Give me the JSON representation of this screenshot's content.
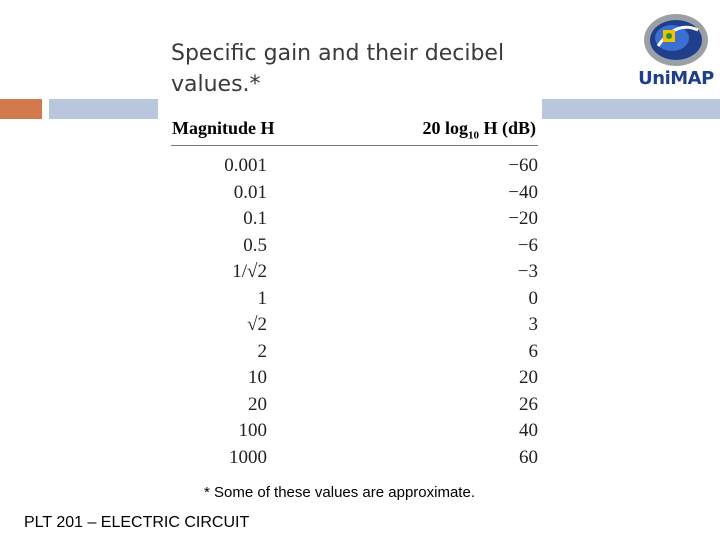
{
  "slide": {
    "title": "Specific gain and their decibel\nvalues.*",
    "note": "* Some of these values are approximate.",
    "footer": "PLT 201 – ELECTRIC CIRCUIT"
  },
  "logo": {
    "text": "UniMAP"
  },
  "table": {
    "header_magnitude": "Magnitude H",
    "header_db_prefix": "20 log",
    "header_db_sub": "10",
    "header_db_suffix": " H (dB)",
    "rows": [
      {
        "magnitude": "0.001",
        "db": "−60"
      },
      {
        "magnitude": "0.01",
        "db": "−40"
      },
      {
        "magnitude": "0.1",
        "db": "−20"
      },
      {
        "magnitude": "0.5",
        "db": "−6"
      },
      {
        "magnitude": "1/√2",
        "db": "−3"
      },
      {
        "magnitude": "1",
        "db": "0"
      },
      {
        "magnitude": "√2",
        "db": "3"
      },
      {
        "magnitude": "2",
        "db": "6"
      },
      {
        "magnitude": "10",
        "db": "20"
      },
      {
        "magnitude": "20",
        "db": "26"
      },
      {
        "magnitude": "100",
        "db": "40"
      },
      {
        "magnitude": "1000",
        "db": "60"
      }
    ]
  },
  "colors": {
    "accent_orange": "#d27a4e",
    "accent_blue": "#b8c7de",
    "title_text": "#3a3a3a"
  }
}
